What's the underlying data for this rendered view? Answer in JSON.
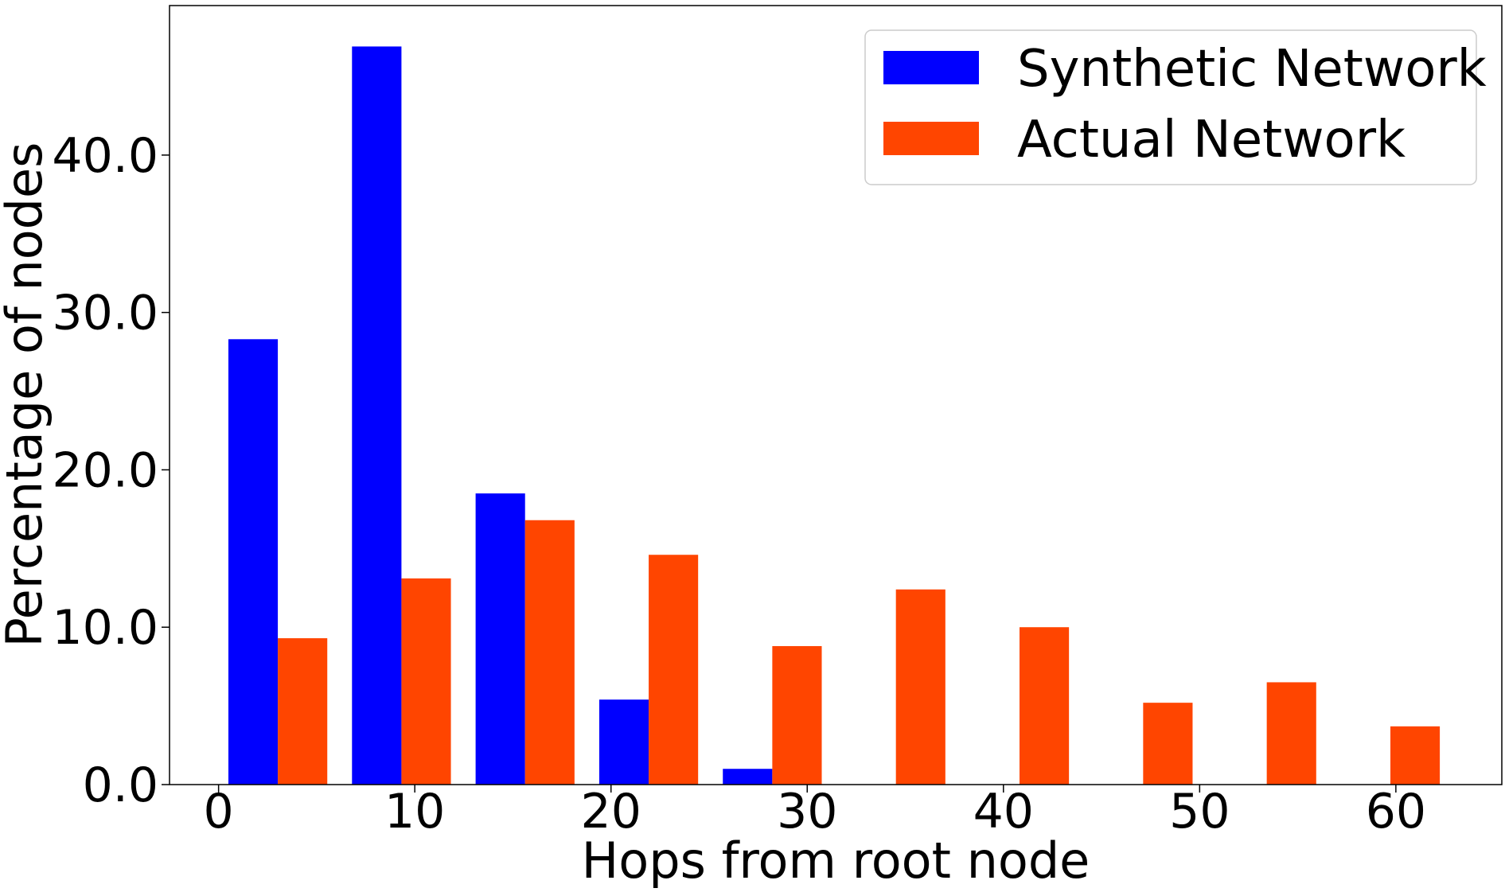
{
  "chart_data": {
    "type": "bar",
    "title": "",
    "xlabel": "Hops from root node",
    "ylabel": "Percentage of nodes",
    "xlim": [
      -2.5,
      65.4
    ],
    "ylim": [
      0,
      49.5
    ],
    "xticks": [
      0,
      10,
      20,
      30,
      40,
      50,
      60
    ],
    "xtick_labels": [
      "0",
      "10",
      "20",
      "30",
      "40",
      "50",
      "60"
    ],
    "yticks": [
      0,
      10,
      20,
      30,
      40
    ],
    "ytick_labels": [
      "0.0",
      "10.0",
      "20.0",
      "30.0",
      "40.0"
    ],
    "bin_width": 6.3,
    "bin_starts": [
      0.5,
      6.8,
      13.1,
      19.4,
      25.7,
      32.0,
      38.3,
      44.6,
      50.9,
      57.2
    ],
    "grid": false,
    "legend_position": "top-right",
    "series": [
      {
        "name": "Synthetic Network",
        "color": "#0000ff",
        "values": [
          28.3,
          46.9,
          18.5,
          5.4,
          1.0,
          0,
          0,
          0,
          0,
          0
        ]
      },
      {
        "name": "Actual Network",
        "color": "#ff4500",
        "values": [
          9.3,
          13.1,
          16.8,
          14.6,
          8.8,
          12.4,
          10.0,
          5.2,
          6.5,
          3.7
        ]
      }
    ]
  }
}
